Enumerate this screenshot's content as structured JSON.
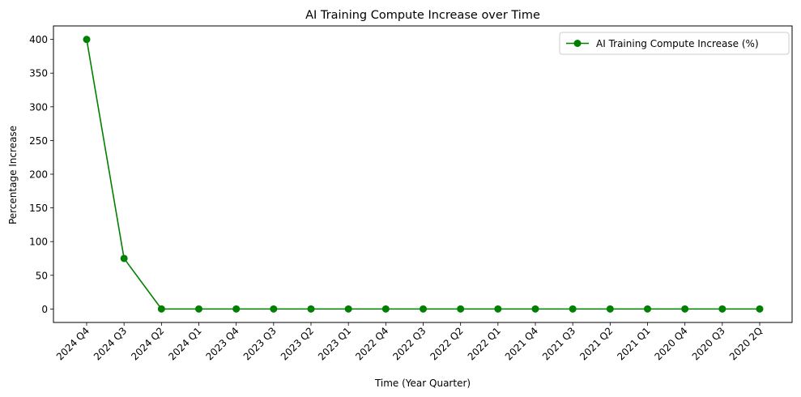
{
  "chart_data": {
    "type": "line",
    "title": "AI Training Compute Increase over Time",
    "xlabel": "Time (Year Quarter)",
    "ylabel": "Percentage Increase",
    "categories": [
      "2024 Q4",
      "2024 Q3",
      "2024 Q2",
      "2024 Q1",
      "2023 Q4",
      "2023 Q3",
      "2023 Q2",
      "2023 Q1",
      "2022 Q4",
      "2022 Q3",
      "2022 Q2",
      "2022 Q1",
      "2021 Q4",
      "2021 Q3",
      "2021 Q2",
      "2021 Q1",
      "2020 Q4",
      "2020 Q3",
      "2020 2Q"
    ],
    "series": [
      {
        "name": "AI Training Compute Increase (%)",
        "color": "#008000",
        "marker": "circle",
        "values": [
          400,
          75,
          0,
          0,
          0,
          0,
          0,
          0,
          0,
          0,
          0,
          0,
          0,
          0,
          0,
          0,
          0,
          0,
          0
        ]
      }
    ],
    "ylim": [
      -20,
      420
    ],
    "yticks": [
      0,
      50,
      100,
      150,
      200,
      250,
      300,
      350,
      400
    ],
    "grid": false,
    "legend": "top-right"
  }
}
